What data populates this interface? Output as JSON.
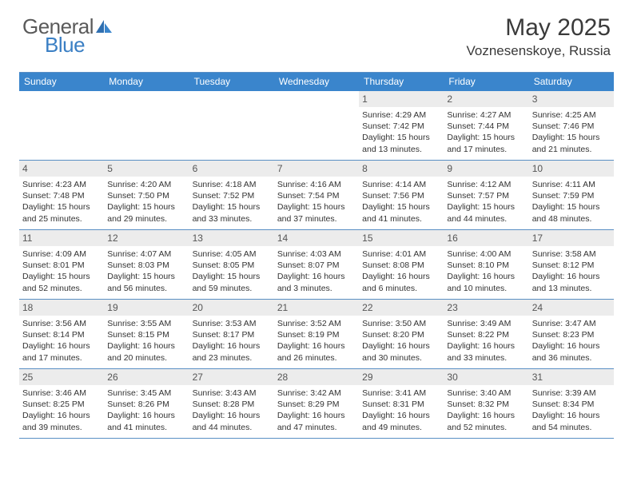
{
  "brand": {
    "text1": "General",
    "text2": "Blue"
  },
  "title": {
    "month": "May 2025",
    "location": "Voznesenskoye, Russia"
  },
  "colors": {
    "header_bg": "#3a85cc",
    "border": "#5a8fc4",
    "daynum_bg": "#ececec",
    "logo_gray": "#5a5a5a",
    "logo_blue": "#3a7fc4",
    "text": "#333333"
  },
  "typography": {
    "month_fontsize": 30,
    "location_fontsize": 17,
    "dayheader_fontsize": 12,
    "cell_fontsize": 10.5
  },
  "dayNames": [
    "Sunday",
    "Monday",
    "Tuesday",
    "Wednesday",
    "Thursday",
    "Friday",
    "Saturday"
  ],
  "weeks": [
    [
      {
        "blank": true
      },
      {
        "blank": true
      },
      {
        "blank": true
      },
      {
        "blank": true
      },
      {
        "n": "1",
        "sr": "Sunrise: 4:29 AM",
        "ss": "Sunset: 7:42 PM",
        "dl": "Daylight: 15 hours and 13 minutes."
      },
      {
        "n": "2",
        "sr": "Sunrise: 4:27 AM",
        "ss": "Sunset: 7:44 PM",
        "dl": "Daylight: 15 hours and 17 minutes."
      },
      {
        "n": "3",
        "sr": "Sunrise: 4:25 AM",
        "ss": "Sunset: 7:46 PM",
        "dl": "Daylight: 15 hours and 21 minutes."
      }
    ],
    [
      {
        "n": "4",
        "sr": "Sunrise: 4:23 AM",
        "ss": "Sunset: 7:48 PM",
        "dl": "Daylight: 15 hours and 25 minutes."
      },
      {
        "n": "5",
        "sr": "Sunrise: 4:20 AM",
        "ss": "Sunset: 7:50 PM",
        "dl": "Daylight: 15 hours and 29 minutes."
      },
      {
        "n": "6",
        "sr": "Sunrise: 4:18 AM",
        "ss": "Sunset: 7:52 PM",
        "dl": "Daylight: 15 hours and 33 minutes."
      },
      {
        "n": "7",
        "sr": "Sunrise: 4:16 AM",
        "ss": "Sunset: 7:54 PM",
        "dl": "Daylight: 15 hours and 37 minutes."
      },
      {
        "n": "8",
        "sr": "Sunrise: 4:14 AM",
        "ss": "Sunset: 7:56 PM",
        "dl": "Daylight: 15 hours and 41 minutes."
      },
      {
        "n": "9",
        "sr": "Sunrise: 4:12 AM",
        "ss": "Sunset: 7:57 PM",
        "dl": "Daylight: 15 hours and 44 minutes."
      },
      {
        "n": "10",
        "sr": "Sunrise: 4:11 AM",
        "ss": "Sunset: 7:59 PM",
        "dl": "Daylight: 15 hours and 48 minutes."
      }
    ],
    [
      {
        "n": "11",
        "sr": "Sunrise: 4:09 AM",
        "ss": "Sunset: 8:01 PM",
        "dl": "Daylight: 15 hours and 52 minutes."
      },
      {
        "n": "12",
        "sr": "Sunrise: 4:07 AM",
        "ss": "Sunset: 8:03 PM",
        "dl": "Daylight: 15 hours and 56 minutes."
      },
      {
        "n": "13",
        "sr": "Sunrise: 4:05 AM",
        "ss": "Sunset: 8:05 PM",
        "dl": "Daylight: 15 hours and 59 minutes."
      },
      {
        "n": "14",
        "sr": "Sunrise: 4:03 AM",
        "ss": "Sunset: 8:07 PM",
        "dl": "Daylight: 16 hours and 3 minutes."
      },
      {
        "n": "15",
        "sr": "Sunrise: 4:01 AM",
        "ss": "Sunset: 8:08 PM",
        "dl": "Daylight: 16 hours and 6 minutes."
      },
      {
        "n": "16",
        "sr": "Sunrise: 4:00 AM",
        "ss": "Sunset: 8:10 PM",
        "dl": "Daylight: 16 hours and 10 minutes."
      },
      {
        "n": "17",
        "sr": "Sunrise: 3:58 AM",
        "ss": "Sunset: 8:12 PM",
        "dl": "Daylight: 16 hours and 13 minutes."
      }
    ],
    [
      {
        "n": "18",
        "sr": "Sunrise: 3:56 AM",
        "ss": "Sunset: 8:14 PM",
        "dl": "Daylight: 16 hours and 17 minutes."
      },
      {
        "n": "19",
        "sr": "Sunrise: 3:55 AM",
        "ss": "Sunset: 8:15 PM",
        "dl": "Daylight: 16 hours and 20 minutes."
      },
      {
        "n": "20",
        "sr": "Sunrise: 3:53 AM",
        "ss": "Sunset: 8:17 PM",
        "dl": "Daylight: 16 hours and 23 minutes."
      },
      {
        "n": "21",
        "sr": "Sunrise: 3:52 AM",
        "ss": "Sunset: 8:19 PM",
        "dl": "Daylight: 16 hours and 26 minutes."
      },
      {
        "n": "22",
        "sr": "Sunrise: 3:50 AM",
        "ss": "Sunset: 8:20 PM",
        "dl": "Daylight: 16 hours and 30 minutes."
      },
      {
        "n": "23",
        "sr": "Sunrise: 3:49 AM",
        "ss": "Sunset: 8:22 PM",
        "dl": "Daylight: 16 hours and 33 minutes."
      },
      {
        "n": "24",
        "sr": "Sunrise: 3:47 AM",
        "ss": "Sunset: 8:23 PM",
        "dl": "Daylight: 16 hours and 36 minutes."
      }
    ],
    [
      {
        "n": "25",
        "sr": "Sunrise: 3:46 AM",
        "ss": "Sunset: 8:25 PM",
        "dl": "Daylight: 16 hours and 39 minutes."
      },
      {
        "n": "26",
        "sr": "Sunrise: 3:45 AM",
        "ss": "Sunset: 8:26 PM",
        "dl": "Daylight: 16 hours and 41 minutes."
      },
      {
        "n": "27",
        "sr": "Sunrise: 3:43 AM",
        "ss": "Sunset: 8:28 PM",
        "dl": "Daylight: 16 hours and 44 minutes."
      },
      {
        "n": "28",
        "sr": "Sunrise: 3:42 AM",
        "ss": "Sunset: 8:29 PM",
        "dl": "Daylight: 16 hours and 47 minutes."
      },
      {
        "n": "29",
        "sr": "Sunrise: 3:41 AM",
        "ss": "Sunset: 8:31 PM",
        "dl": "Daylight: 16 hours and 49 minutes."
      },
      {
        "n": "30",
        "sr": "Sunrise: 3:40 AM",
        "ss": "Sunset: 8:32 PM",
        "dl": "Daylight: 16 hours and 52 minutes."
      },
      {
        "n": "31",
        "sr": "Sunrise: 3:39 AM",
        "ss": "Sunset: 8:34 PM",
        "dl": "Daylight: 16 hours and 54 minutes."
      }
    ]
  ]
}
